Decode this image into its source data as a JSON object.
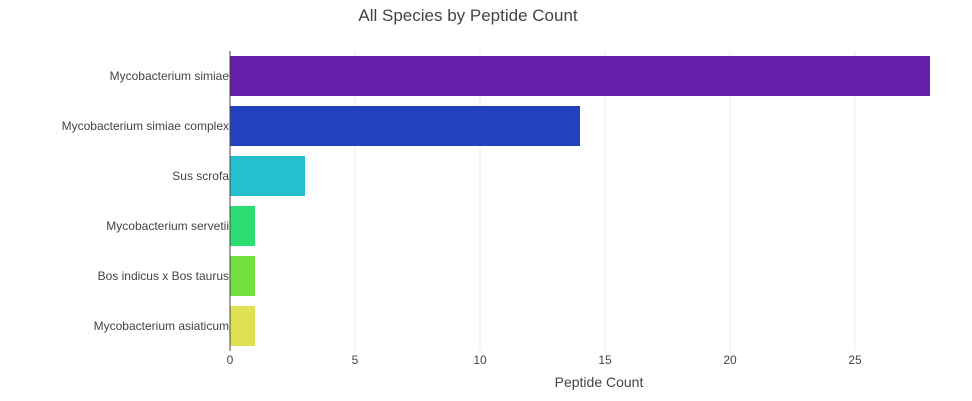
{
  "chart_data": {
    "type": "bar",
    "orientation": "horizontal",
    "title": "All Species by Peptide Count",
    "xlabel": "Peptide Count",
    "ylabel": "",
    "xlim": [
      0,
      28
    ],
    "xticks": [
      0,
      5,
      10,
      15,
      20,
      25
    ],
    "grid": true,
    "legend": "none",
    "categories": [
      "Mycobacterium simiae",
      "Mycobacterium simiae complex",
      "Sus scrofa",
      "Mycobacterium servetii",
      "Bos indicus x Bos taurus",
      "Mycobacterium asiaticum"
    ],
    "values": [
      28,
      14,
      3,
      1,
      1,
      1
    ],
    "colors": [
      "#661fab",
      "#2341bf",
      "#26bfd0",
      "#2ddc72",
      "#73df3e",
      "#e0e053"
    ]
  }
}
